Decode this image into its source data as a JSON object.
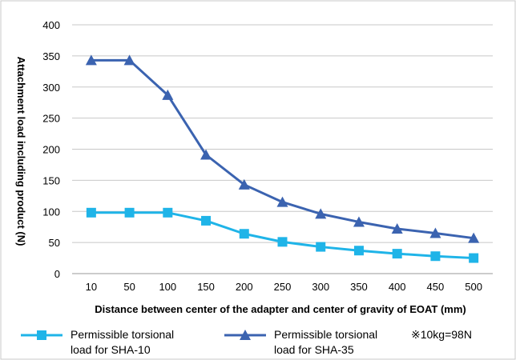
{
  "chart_data": {
    "type": "line",
    "title": "",
    "xlabel": "Distance between center of the adapter and center of gravity of EOAT (mm)",
    "ylabel": "Attachment load including product (N)",
    "ylim": [
      0,
      400
    ],
    "yticks": [
      0,
      50,
      100,
      150,
      200,
      250,
      300,
      350,
      400
    ],
    "categories": [
      "10",
      "50",
      "100",
      "150",
      "200",
      "250",
      "300",
      "350",
      "400",
      "450",
      "500"
    ],
    "grid": true,
    "legend_position": "bottom",
    "note": "※10kg=98N",
    "series": [
      {
        "name_line1": "Permissible torsional",
        "name_line2": "load for SHA-10",
        "marker": "square",
        "color": "#1fb4e8",
        "values": [
          98,
          98,
          98,
          85,
          64,
          51,
          43,
          37,
          32,
          28,
          25
        ]
      },
      {
        "name_line1": "Permissible torsional",
        "name_line2": "load for SHA-35",
        "marker": "triangle",
        "color": "#3b63b0",
        "values": [
          343,
          343,
          287,
          191,
          143,
          115,
          96,
          83,
          72,
          65,
          57
        ]
      }
    ]
  }
}
